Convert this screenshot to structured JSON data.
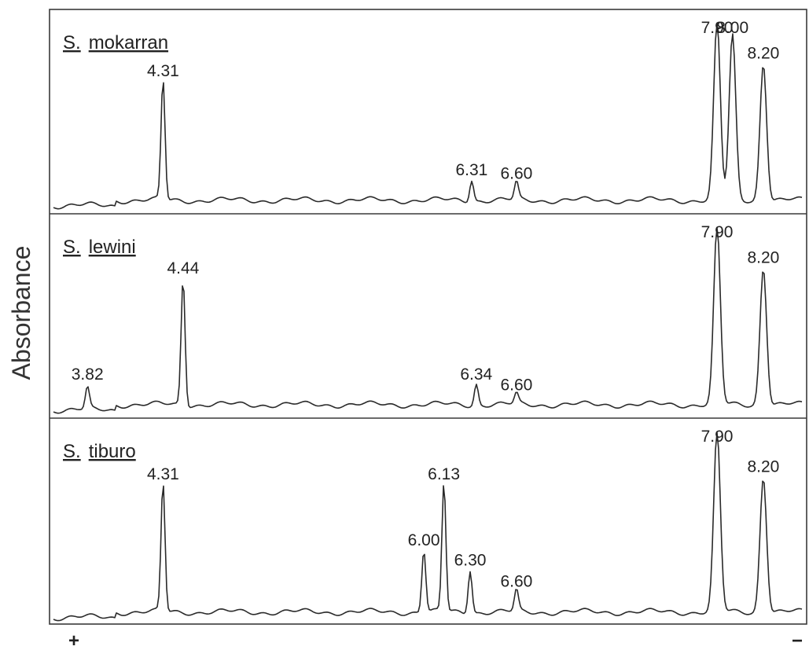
{
  "y_axis_label": "Absorbance",
  "positive_pole": "+",
  "negative_pole": "−",
  "chart_data": [
    {
      "type": "line",
      "genus": "S.",
      "species": "mokarran",
      "peaks": [
        {
          "label": "4.31",
          "x": 4.31,
          "height": 0.68
        },
        {
          "label": "6.31",
          "x": 6.31,
          "height": 0.12
        },
        {
          "label": "6.60",
          "x": 6.6,
          "height": 0.1
        },
        {
          "label": "7.90",
          "x": 7.9,
          "height": 1.0
        },
        {
          "label": "8.00",
          "x": 8.0,
          "height": 0.93
        },
        {
          "label": "8.20",
          "x": 8.2,
          "height": 0.78
        }
      ]
    },
    {
      "type": "line",
      "genus": "S.",
      "species": "lewini",
      "peaks": [
        {
          "label": "3.82",
          "x": 3.82,
          "height": 0.12
        },
        {
          "label": "4.44",
          "x": 4.44,
          "height": 0.72
        },
        {
          "label": "6.34",
          "x": 6.34,
          "height": 0.12
        },
        {
          "label": "6.60",
          "x": 6.6,
          "height": 0.06
        },
        {
          "label": "7.90",
          "x": 7.9,
          "height": 1.0
        },
        {
          "label": "8.20",
          "x": 8.2,
          "height": 0.78
        }
      ]
    },
    {
      "type": "line",
      "genus": "S.",
      "species": "tiburo",
      "peaks": [
        {
          "label": "4.31",
          "x": 4.31,
          "height": 0.72
        },
        {
          "label": "6.00",
          "x": 6.0,
          "height": 0.35
        },
        {
          "label": "6.13",
          "x": 6.13,
          "height": 0.72
        },
        {
          "label": "6.30",
          "x": 6.3,
          "height": 0.24
        },
        {
          "label": "6.60",
          "x": 6.6,
          "height": 0.12
        },
        {
          "label": "7.90",
          "x": 7.9,
          "height": 1.0
        },
        {
          "label": "8.20",
          "x": 8.2,
          "height": 0.76
        }
      ]
    }
  ]
}
